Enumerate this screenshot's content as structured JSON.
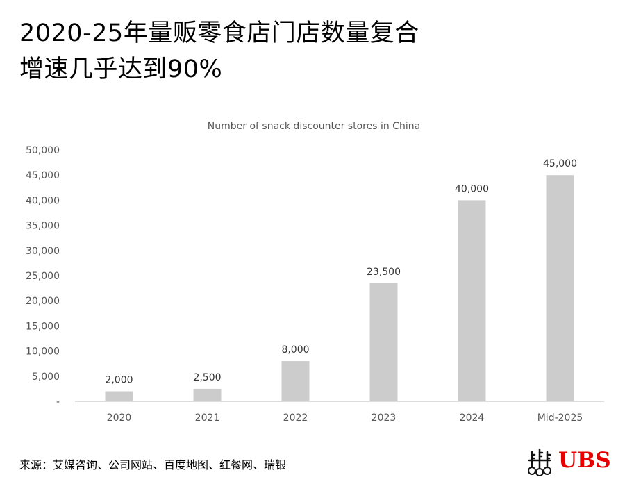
{
  "headline": {
    "line1": "2020-25年量贩零食店门店数量复合",
    "line2": "增速几乎达到90%"
  },
  "chart_data": {
    "type": "bar",
    "title": "Number of snack discounter stores in China",
    "xlabel": "",
    "ylabel": "",
    "categories": [
      "2020",
      "2021",
      "2022",
      "2023",
      "2024",
      "Mid-2025"
    ],
    "values": [
      2000,
      2500,
      8000,
      23500,
      40000,
      45000
    ],
    "data_labels": [
      "2,000",
      "2,500",
      "8,000",
      "23,500",
      "40,000",
      "45,000"
    ],
    "ylim": [
      0,
      50000
    ],
    "yticks": [
      0,
      5000,
      10000,
      15000,
      20000,
      25000,
      30000,
      35000,
      40000,
      45000,
      50000
    ],
    "ytick_labels": [
      "-",
      "5,000",
      "10,000",
      "15,000",
      "20,000",
      "25,000",
      "30,000",
      "35,000",
      "40,000",
      "45,000",
      "50,000"
    ],
    "bar_color": "#cccccc",
    "grid": false,
    "legend": "none"
  },
  "footer": {
    "source": "来源：艾媒咨询、公司网站、百度地图、红餐网、瑞银",
    "logo_text": "UBS",
    "brand_color": "#e60000"
  }
}
